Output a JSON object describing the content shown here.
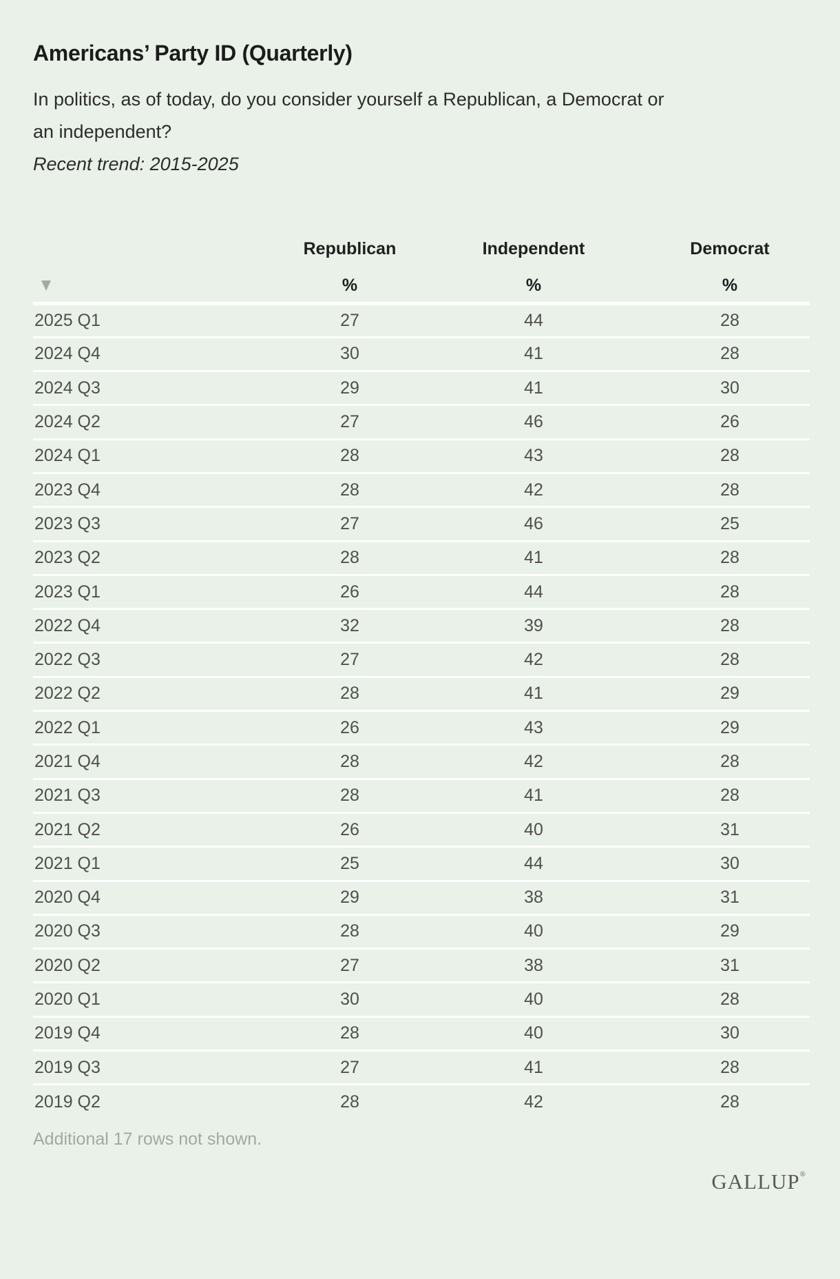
{
  "header": {
    "title": "Americans’ Party ID (Quarterly)",
    "question_lines": [
      "In politics, as of today, do you consider yourself a Republican, a Democrat or",
      "an independent?"
    ],
    "trend_note": "Recent trend: 2015-2025"
  },
  "table": {
    "unit": "%"
  },
  "chart_data": {
    "type": "table",
    "title": "Americans’ Party ID (Quarterly)",
    "subtitle": "In politics, as of today, do you consider yourself a Republican, a Democrat or an independent?",
    "note": "Recent trend: 2015-2025",
    "unit": "%",
    "categories": [
      "2025 Q1",
      "2024 Q4",
      "2024 Q3",
      "2024 Q2",
      "2024 Q1",
      "2023 Q4",
      "2023 Q3",
      "2023 Q2",
      "2023 Q1",
      "2022 Q4",
      "2022 Q3",
      "2022 Q2",
      "2022 Q1",
      "2021 Q4",
      "2021 Q3",
      "2021 Q2",
      "2021 Q1",
      "2020 Q4",
      "2020 Q3",
      "2020 Q2",
      "2020 Q1",
      "2019 Q4",
      "2019 Q3",
      "2019 Q2"
    ],
    "series": [
      {
        "name": "Republican",
        "values": [
          27,
          30,
          29,
          27,
          28,
          28,
          27,
          28,
          26,
          32,
          27,
          28,
          26,
          28,
          28,
          26,
          25,
          29,
          28,
          27,
          30,
          28,
          27,
          28
        ]
      },
      {
        "name": "Independent",
        "values": [
          44,
          41,
          41,
          46,
          43,
          42,
          46,
          41,
          44,
          39,
          42,
          41,
          43,
          42,
          41,
          40,
          44,
          38,
          40,
          38,
          40,
          40,
          41,
          42
        ]
      },
      {
        "name": "Democrat",
        "values": [
          28,
          28,
          30,
          26,
          28,
          28,
          25,
          28,
          28,
          28,
          28,
          29,
          29,
          28,
          28,
          31,
          30,
          31,
          29,
          31,
          28,
          30,
          28,
          28
        ]
      }
    ]
  },
  "footer": {
    "additional_rows_note": "Additional 17 rows not shown.",
    "brand": "GALLUP",
    "registered_mark": "®"
  },
  "colors": {
    "background": "#e9f1e9",
    "separator": "#ffffff",
    "heading_text": "#1f1f1f",
    "body_text": "#2d2d2b",
    "data_text": "#50504c",
    "muted_text": "#a1a9a1",
    "sort_icon": "#a2aaa2",
    "brand_text": "#5b5b56"
  }
}
